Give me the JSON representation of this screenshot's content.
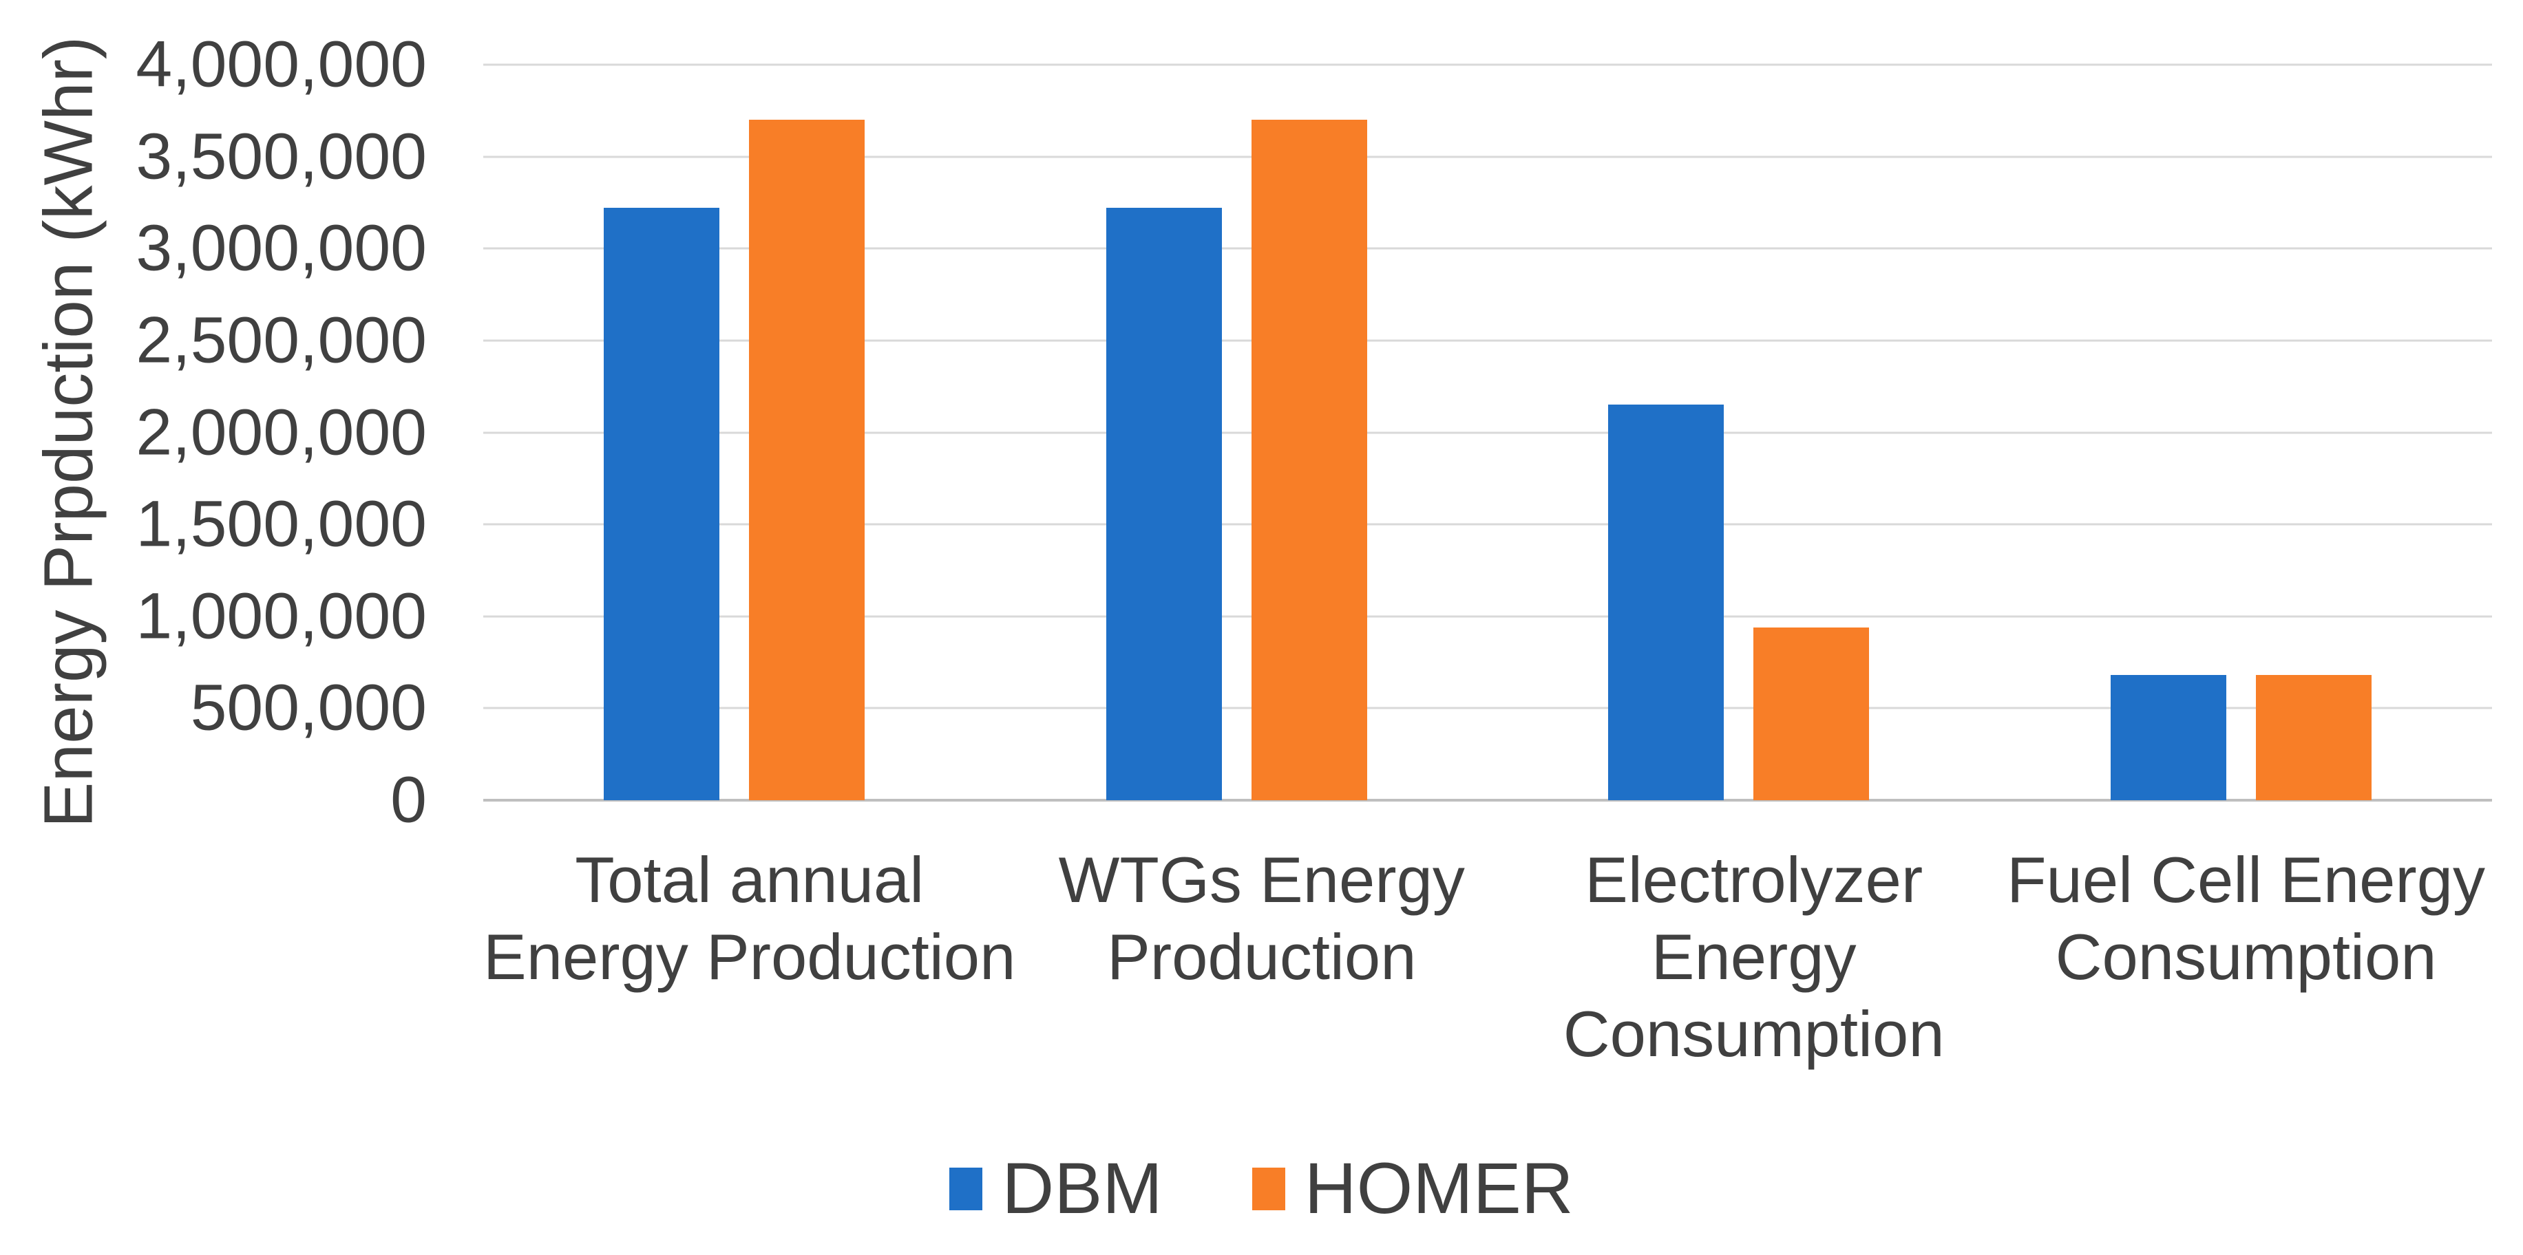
{
  "chart_data": {
    "type": "bar",
    "ylabel": "Energy Prpduction (kWhr)",
    "ylim": [
      0,
      4000000
    ],
    "ytick_interval": 500000,
    "yticks_labels": [
      "4,000,000",
      "3,500,000",
      "3,000,000",
      "2,500,000",
      "2,000,000",
      "1,500,000",
      "1,000,000",
      "500,000",
      "0"
    ],
    "categories": [
      [
        "Total annual",
        "Energy Production"
      ],
      [
        "WTGs Energy",
        "Production"
      ],
      [
        "Electrolyzer",
        "Energy",
        "Consumption"
      ],
      [
        "Fuel Cell Energy",
        "Consumption"
      ]
    ],
    "series": [
      {
        "name": "DBM",
        "color": "#1f70c7",
        "values": [
          3220000,
          3220000,
          2150000,
          680000
        ]
      },
      {
        "name": "HOMER",
        "color": "#f87e27",
        "values": [
          3700000,
          3700000,
          940000,
          680000
        ]
      }
    ],
    "legend_position": "bottom",
    "grid": "horizontal",
    "colors": {
      "text": "#404040",
      "gridline": "#d9d9d9",
      "axis_line": "#bfbfbf",
      "background": "#ffffff"
    }
  }
}
